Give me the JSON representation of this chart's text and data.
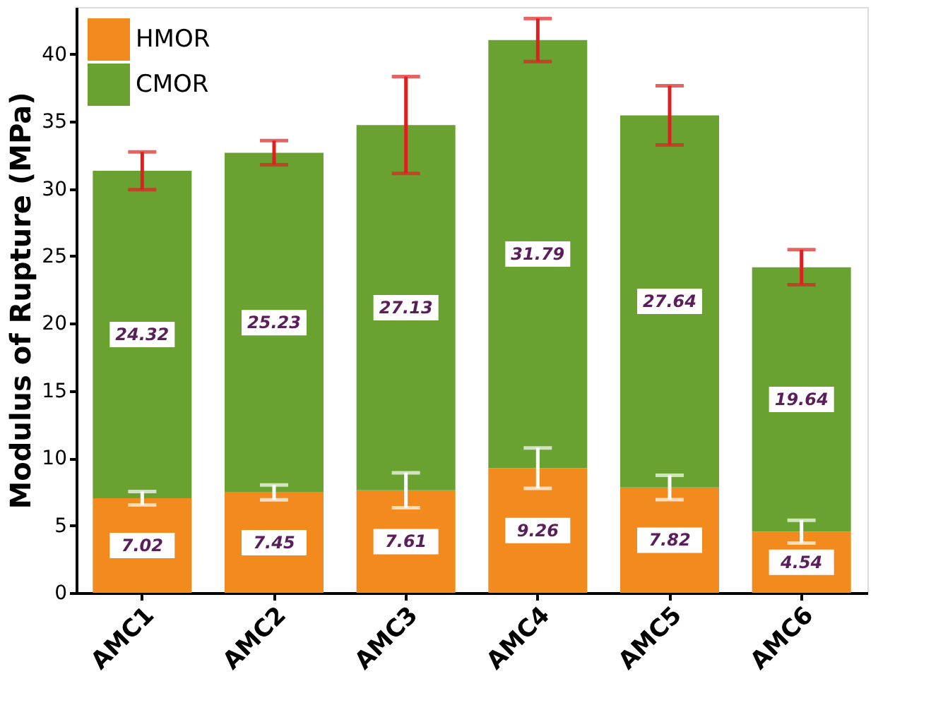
{
  "chart_data": {
    "type": "bar",
    "stacked": true,
    "ylabel": "Modulus of Rupture (MPa)",
    "categories": [
      "AMC1",
      "AMC2",
      "AMC3",
      "AMC4",
      "AMC5",
      "AMC6"
    ],
    "series": [
      {
        "name": "HMOR",
        "color": "#f28a1e",
        "values": [
          7.02,
          7.45,
          7.61,
          9.26,
          7.82,
          4.54
        ],
        "errors": [
          0.5,
          0.55,
          1.3,
          1.5,
          0.9,
          0.85
        ]
      },
      {
        "name": "CMOR",
        "color": "#6aa232",
        "values": [
          24.32,
          25.23,
          27.13,
          31.79,
          27.64,
          19.64
        ],
        "errors": [
          1.4,
          0.9,
          3.6,
          1.6,
          2.2,
          1.3
        ]
      }
    ],
    "ylim": [
      0,
      43.5
    ],
    "yticks": [
      0,
      5,
      10,
      15,
      20,
      25,
      30,
      35,
      40
    ],
    "grid": false,
    "legend": "top left",
    "data_labels": true
  }
}
